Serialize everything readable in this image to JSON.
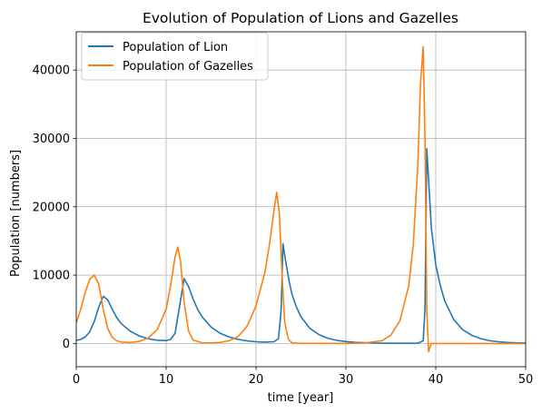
{
  "chart_data": {
    "type": "line",
    "title": "Evolution of Population of Lions and Gazelles",
    "xlabel": "time [year]",
    "ylabel": "Population [numbers]",
    "xlim": [
      0,
      50
    ],
    "ylim": [
      -3400,
      45600
    ],
    "xticks": [
      0,
      10,
      20,
      30,
      40,
      50
    ],
    "yticks": [
      0,
      10000,
      20000,
      30000,
      40000
    ],
    "grid": true,
    "legend_position": "top-left",
    "series": [
      {
        "name": "Population of Lion",
        "color": "#1f77b4",
        "x": [
          0,
          0.5,
          1,
          1.5,
          2,
          2.5,
          3,
          3.5,
          4,
          4.5,
          5,
          6,
          7,
          8,
          9,
          10,
          10.5,
          11,
          11.5,
          12,
          12.5,
          13,
          13.5,
          14,
          15,
          16,
          17,
          18,
          19,
          20,
          21,
          22,
          22.5,
          22.8,
          23,
          23.3,
          23.7,
          24,
          24.5,
          25,
          26,
          27,
          28,
          29,
          30,
          31,
          32,
          33,
          34,
          35,
          36,
          37,
          38,
          38.6,
          38.8,
          39,
          39.2,
          39.5,
          40,
          40.5,
          41,
          42,
          43,
          44,
          45,
          46,
          47,
          48,
          49,
          50
        ],
        "y": [
          450,
          600,
          950,
          1700,
          3200,
          5300,
          6900,
          6400,
          5000,
          3800,
          2900,
          1800,
          1100,
          700,
          480,
          420,
          600,
          1500,
          5500,
          9500,
          8300,
          6500,
          5000,
          3900,
          2400,
          1500,
          950,
          600,
          380,
          250,
          200,
          250,
          700,
          5000,
          14600,
          12000,
          9000,
          7200,
          5300,
          3900,
          2200,
          1300,
          750,
          450,
          280,
          170,
          110,
          70,
          45,
          30,
          25,
          25,
          40,
          400,
          5000,
          28500,
          24000,
          17000,
          11500,
          8500,
          6200,
          3500,
          2000,
          1200,
          700,
          400,
          250,
          150,
          100,
          80
        ]
      },
      {
        "name": "Population of Gazelles",
        "color": "#ff7f0e",
        "x": [
          0,
          0.5,
          1,
          1.5,
          2,
          2.5,
          3,
          3.5,
          4,
          4.5,
          5,
          6,
          7,
          8,
          9,
          10,
          10.5,
          11,
          11.3,
          11.6,
          12,
          12.5,
          13,
          14,
          15,
          16,
          17,
          18,
          19,
          20,
          21,
          21.5,
          22,
          22.3,
          22.6,
          22.9,
          23.2,
          23.6,
          24,
          25,
          26,
          28,
          30,
          32,
          34,
          35,
          36,
          37,
          37.5,
          38,
          38.3,
          38.6,
          38.8,
          39,
          39.2,
          39.5,
          40,
          41,
          42,
          44,
          46,
          48,
          50
        ],
        "y": [
          3000,
          5000,
          7500,
          9400,
          10000,
          8700,
          5000,
          2200,
          900,
          400,
          200,
          150,
          300,
          800,
          2000,
          5000,
          8500,
          12700,
          14100,
          12000,
          6000,
          1800,
          500,
          100,
          80,
          150,
          400,
          1000,
          2500,
          5500,
          10500,
          14500,
          19500,
          22100,
          19000,
          10000,
          3000,
          600,
          100,
          10,
          5,
          5,
          10,
          60,
          400,
          1200,
          3300,
          8500,
          14500,
          26000,
          38000,
          43400,
          30000,
          5000,
          -1200,
          0,
          0,
          0,
          0,
          0,
          0,
          0,
          0
        ]
      }
    ]
  }
}
